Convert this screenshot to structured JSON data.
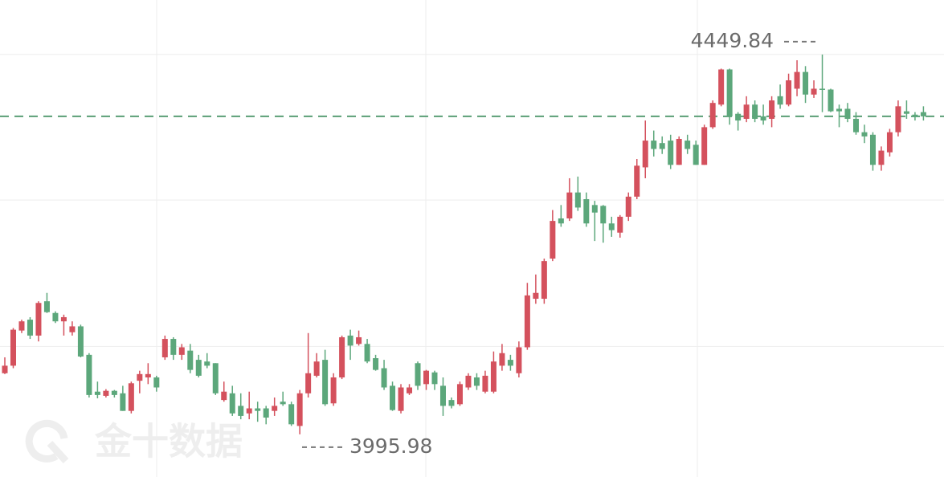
{
  "chart_data": {
    "type": "candlestick",
    "open": [
      4069,
      4078,
      4120,
      4133,
      4114,
      4155,
      4141,
      4131,
      4118,
      4125,
      4091,
      4047,
      4042,
      4048,
      4045,
      4024,
      4060,
      4064,
      4064,
      4088,
      4110,
      4091,
      4096,
      4085,
      4083,
      4081,
      4037,
      4045,
      4030,
      4021,
      4027,
      4027,
      4024,
      4035,
      4032,
      4006,
      4045,
      4066,
      4085,
      4033,
      4064,
      4114,
      4104,
      4104,
      4087,
      4075,
      4054,
      4024,
      4045,
      4081,
      4056,
      4070,
      4054,
      4037,
      4032,
      4052,
      4064,
      4047,
      4047,
      4078,
      4085,
      4069,
      4100,
      4158,
      4158,
      4206,
      4254,
      4254,
      4285,
      4277,
      4270,
      4269,
      4248,
      4237,
      4256,
      4280,
      4315,
      4347,
      4344,
      4347,
      4318,
      4347,
      4342,
      4318,
      4363,
      4390,
      4432,
      4379,
      4373,
      4390,
      4376,
      4373,
      4400,
      4390,
      4409,
      4429,
      4402,
      4409,
      4408,
      4385,
      4385,
      4373,
      4357,
      4354,
      4318,
      4333,
      4357,
      4382,
      4378,
      4381
    ],
    "high": [
      4088,
      4123,
      4133,
      4136,
      4155,
      4165,
      4143,
      4139,
      4131,
      4127,
      4093,
      4059,
      4050,
      4049,
      4054,
      4059,
      4072,
      4081,
      4066,
      4114,
      4112,
      4104,
      4104,
      4091,
      4093,
      4081,
      4059,
      4054,
      4045,
      4047,
      4035,
      4030,
      4040,
      4047,
      4035,
      4049,
      4117,
      4093,
      4097,
      4069,
      4114,
      4121,
      4120,
      4110,
      4091,
      4085,
      4059,
      4056,
      4056,
      4083,
      4073,
      4072,
      4064,
      4040,
      4059,
      4069,
      4069,
      4072,
      4095,
      4104,
      4091,
      4107,
      4177,
      4187,
      4206,
      4264,
      4270,
      4302,
      4304,
      4285,
      4275,
      4270,
      4256,
      4258,
      4285,
      4325,
      4371,
      4359,
      4352,
      4354,
      4352,
      4354,
      4347,
      4366,
      4395,
      4433,
      4433,
      4381,
      4400,
      4395,
      4390,
      4400,
      4414,
      4427,
      4443,
      4436,
      4419,
      4449.84,
      4409,
      4390,
      4392,
      4381,
      4366,
      4357,
      4340,
      4361,
      4395,
      4395,
      4381,
      4388
    ],
    "low": [
      4068,
      4075,
      4117,
      4110,
      4107,
      4141,
      4129,
      4114,
      4114,
      4088,
      4040,
      4039,
      4040,
      4040,
      4024,
      4021,
      4045,
      4056,
      4047,
      4085,
      4085,
      4085,
      4069,
      4064,
      4075,
      4043,
      4035,
      4018,
      4014,
      4014,
      4011,
      4008,
      4018,
      4030,
      4006,
      3995.98,
      4040,
      4064,
      4030,
      4030,
      4062,
      4085,
      4102,
      4081,
      4072,
      4049,
      4024,
      4021,
      4043,
      4049,
      4049,
      4049,
      4018,
      4027,
      4030,
      4049,
      4049,
      4045,
      4045,
      4072,
      4072,
      4064,
      4097,
      4152,
      4152,
      4203,
      4244,
      4251,
      4263,
      4244,
      4227,
      4225,
      4232,
      4231,
      4251,
      4277,
      4302,
      4328,
      4331,
      4313,
      4318,
      4331,
      4318,
      4318,
      4361,
      4388,
      4366,
      4359,
      4369,
      4369,
      4366,
      4363,
      4385,
      4388,
      4400,
      4392,
      4398,
      4381,
      4381,
      4363,
      4369,
      4354,
      4344,
      4311,
      4311,
      4328,
      4352,
      4373,
      4371,
      4371
    ],
    "close": [
      4078,
      4121,
      4131,
      4114,
      4153,
      4142,
      4131,
      4136,
      4125,
      4089,
      4043,
      4043,
      4048,
      4043,
      4024,
      4057,
      4068,
      4068,
      4052,
      4110,
      4091,
      4100,
      4073,
      4066,
      4078,
      4045,
      4047,
      4021,
      4018,
      4027,
      4024,
      4016,
      4030,
      4032,
      4008,
      4045,
      4069,
      4083,
      4032,
      4064,
      4112,
      4102,
      4112,
      4083,
      4073,
      4052,
      4025,
      4052,
      4052,
      4054,
      4072,
      4056,
      4030,
      4030,
      4056,
      4066,
      4054,
      4066,
      4083,
      4093,
      4078,
      4100,
      4162,
      4165,
      4203,
      4251,
      4248,
      4285,
      4267,
      4248,
      4261,
      4248,
      4240,
      4256,
      4280,
      4317,
      4347,
      4337,
      4337,
      4318,
      4349,
      4337,
      4318,
      4363,
      4392,
      4432,
      4376,
      4371,
      4390,
      4373,
      4371,
      4395,
      4390,
      4419,
      4429,
      4402,
      4409,
      4408,
      4382,
      4382,
      4373,
      4357,
      4352,
      4318,
      4335,
      4357,
      4388,
      4379,
      4375,
      4376
    ],
    "up_color": "#d4515d",
    "down_color": "#5ca77b",
    "ylim": [
      3945,
      4515
    ],
    "yticks": [
      4101,
      4276,
      4450
    ],
    "grid": true,
    "reference_line": {
      "value": 4376,
      "color": "#5a9e76"
    },
    "max_label": 4449.84,
    "min_label": 3995.98
  },
  "watermark": "金十数据"
}
